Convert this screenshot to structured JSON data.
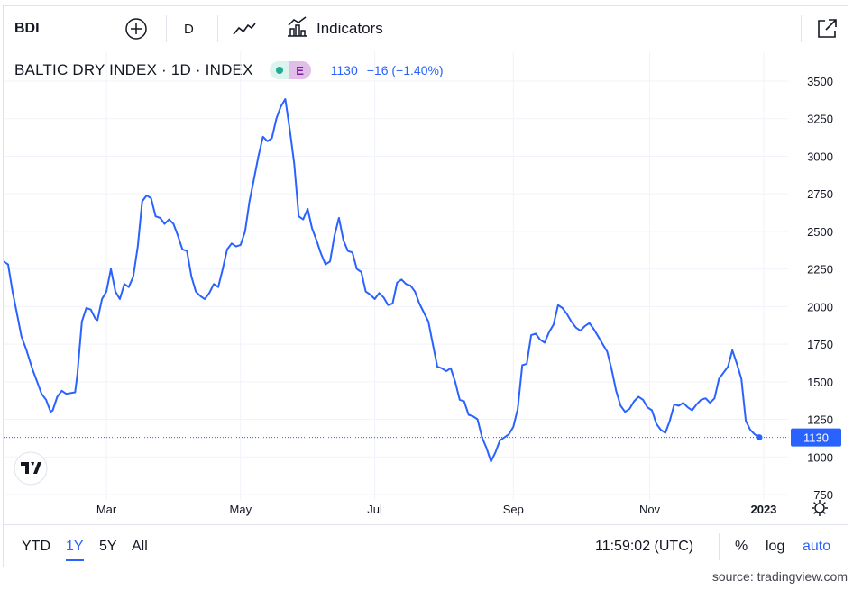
{
  "toolbar": {
    "symbol": "BDI",
    "interval": "D",
    "indicators_label": "Indicators",
    "icons": [
      "plus-circle-icon",
      "line-chart-icon",
      "indicators-icon",
      "expand-icon"
    ]
  },
  "legend": {
    "title": "BALTIC DRY INDEX · 1D · INDEX",
    "badge": "E",
    "value": "1130",
    "change": "−16 (−1.40%)"
  },
  "bottom": {
    "ranges": [
      "YTD",
      "1Y",
      "5Y",
      "All"
    ],
    "active_range": "1Y",
    "time": "11:59:02 (UTC)",
    "percent": "%",
    "log": "log",
    "auto": "auto"
  },
  "source": "source: tradingview.com",
  "colors": {
    "line": "#2962ff",
    "last_badge": "#2962ff",
    "grid": "#f0f3fa"
  },
  "chart_data": {
    "type": "line",
    "ylim": [
      700,
      3600
    ],
    "yticks": [
      750,
      1000,
      1250,
      1500,
      1750,
      2000,
      2250,
      2500,
      2750,
      3000,
      3250,
      3500
    ],
    "xtick_labels": [
      {
        "label": "Mar",
        "t": 46
      },
      {
        "label": "May",
        "t": 106
      },
      {
        "label": "Jul",
        "t": 166
      },
      {
        "label": "Sep",
        "t": 228
      },
      {
        "label": "Nov",
        "t": 289
      },
      {
        "label": "2023",
        "t": 340
      }
    ],
    "last_value": 1130,
    "series": [
      {
        "values": [
          [
            0,
            2300
          ],
          [
            2,
            2280
          ],
          [
            4,
            2100
          ],
          [
            6,
            1950
          ],
          [
            8,
            1800
          ],
          [
            10,
            1720
          ],
          [
            13,
            1580
          ],
          [
            15,
            1500
          ],
          [
            17,
            1420
          ],
          [
            19,
            1380
          ],
          [
            21,
            1300
          ],
          [
            22,
            1310
          ],
          [
            24,
            1400
          ],
          [
            26,
            1440
          ],
          [
            28,
            1420
          ],
          [
            32,
            1430
          ],
          [
            33,
            1550
          ],
          [
            35,
            1900
          ],
          [
            37,
            1990
          ],
          [
            39,
            1980
          ],
          [
            41,
            1920
          ],
          [
            42,
            1910
          ],
          [
            44,
            2050
          ],
          [
            46,
            2100
          ],
          [
            48,
            2250
          ],
          [
            50,
            2100
          ],
          [
            52,
            2050
          ],
          [
            54,
            2150
          ],
          [
            56,
            2130
          ],
          [
            58,
            2200
          ],
          [
            60,
            2400
          ],
          [
            62,
            2700
          ],
          [
            64,
            2740
          ],
          [
            66,
            2720
          ],
          [
            68,
            2600
          ],
          [
            70,
            2590
          ],
          [
            72,
            2550
          ],
          [
            74,
            2580
          ],
          [
            76,
            2550
          ],
          [
            78,
            2470
          ],
          [
            80,
            2380
          ],
          [
            82,
            2370
          ],
          [
            84,
            2200
          ],
          [
            86,
            2100
          ],
          [
            88,
            2070
          ],
          [
            90,
            2050
          ],
          [
            92,
            2090
          ],
          [
            94,
            2150
          ],
          [
            96,
            2130
          ],
          [
            98,
            2250
          ],
          [
            100,
            2380
          ],
          [
            102,
            2420
          ],
          [
            104,
            2400
          ],
          [
            106,
            2410
          ],
          [
            108,
            2500
          ],
          [
            110,
            2700
          ],
          [
            112,
            2850
          ],
          [
            114,
            3000
          ],
          [
            116,
            3130
          ],
          [
            118,
            3100
          ],
          [
            120,
            3120
          ],
          [
            122,
            3250
          ],
          [
            124,
            3330
          ],
          [
            126,
            3380
          ],
          [
            128,
            3180
          ],
          [
            130,
            2950
          ],
          [
            132,
            2600
          ],
          [
            134,
            2580
          ],
          [
            136,
            2650
          ],
          [
            138,
            2520
          ],
          [
            140,
            2440
          ],
          [
            142,
            2350
          ],
          [
            144,
            2280
          ],
          [
            146,
            2300
          ],
          [
            148,
            2470
          ],
          [
            150,
            2590
          ],
          [
            152,
            2440
          ],
          [
            154,
            2370
          ],
          [
            156,
            2360
          ],
          [
            158,
            2250
          ],
          [
            160,
            2230
          ],
          [
            162,
            2100
          ],
          [
            164,
            2080
          ],
          [
            166,
            2050
          ],
          [
            168,
            2090
          ],
          [
            170,
            2060
          ],
          [
            172,
            2010
          ],
          [
            174,
            2020
          ],
          [
            176,
            2160
          ],
          [
            178,
            2180
          ],
          [
            180,
            2150
          ],
          [
            182,
            2140
          ],
          [
            184,
            2100
          ],
          [
            186,
            2020
          ],
          [
            188,
            1960
          ],
          [
            190,
            1900
          ],
          [
            192,
            1750
          ],
          [
            194,
            1600
          ],
          [
            196,
            1590
          ],
          [
            198,
            1570
          ],
          [
            200,
            1590
          ],
          [
            202,
            1500
          ],
          [
            204,
            1380
          ],
          [
            206,
            1370
          ],
          [
            208,
            1280
          ],
          [
            210,
            1270
          ],
          [
            212,
            1250
          ],
          [
            214,
            1130
          ],
          [
            216,
            1060
          ],
          [
            218,
            970
          ],
          [
            220,
            1030
          ],
          [
            222,
            1110
          ],
          [
            224,
            1130
          ],
          [
            226,
            1150
          ],
          [
            228,
            1200
          ],
          [
            230,
            1320
          ],
          [
            232,
            1610
          ],
          [
            234,
            1620
          ],
          [
            236,
            1810
          ],
          [
            238,
            1820
          ],
          [
            240,
            1780
          ],
          [
            242,
            1760
          ],
          [
            244,
            1830
          ],
          [
            246,
            1880
          ],
          [
            248,
            2010
          ],
          [
            250,
            1990
          ],
          [
            252,
            1950
          ],
          [
            254,
            1900
          ],
          [
            256,
            1860
          ],
          [
            258,
            1840
          ],
          [
            260,
            1870
          ],
          [
            262,
            1890
          ],
          [
            264,
            1850
          ],
          [
            266,
            1800
          ],
          [
            268,
            1750
          ],
          [
            270,
            1700
          ],
          [
            272,
            1580
          ],
          [
            274,
            1440
          ],
          [
            276,
            1340
          ],
          [
            278,
            1300
          ],
          [
            280,
            1320
          ],
          [
            282,
            1370
          ],
          [
            284,
            1400
          ],
          [
            286,
            1380
          ],
          [
            288,
            1330
          ],
          [
            290,
            1310
          ],
          [
            292,
            1220
          ],
          [
            294,
            1180
          ],
          [
            296,
            1160
          ],
          [
            298,
            1240
          ],
          [
            300,
            1350
          ],
          [
            302,
            1340
          ],
          [
            304,
            1360
          ],
          [
            306,
            1330
          ],
          [
            308,
            1310
          ],
          [
            310,
            1350
          ],
          [
            312,
            1380
          ],
          [
            314,
            1390
          ],
          [
            316,
            1360
          ],
          [
            318,
            1390
          ],
          [
            320,
            1520
          ],
          [
            322,
            1560
          ],
          [
            324,
            1600
          ],
          [
            326,
            1710
          ],
          [
            328,
            1620
          ],
          [
            330,
            1520
          ],
          [
            332,
            1240
          ],
          [
            334,
            1180
          ],
          [
            336,
            1150
          ],
          [
            338,
            1130
          ]
        ]
      }
    ]
  }
}
